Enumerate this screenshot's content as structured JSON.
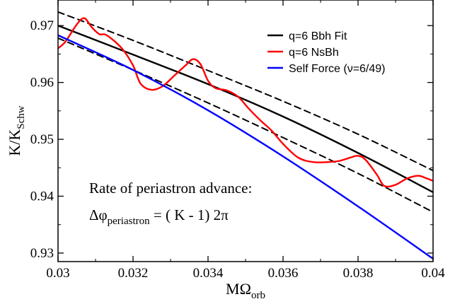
{
  "chart_data": {
    "type": "line",
    "xlim": [
      0.03,
      0.04
    ],
    "ylim": [
      0.9285,
      0.9745
    ],
    "x_ticks": [
      0.03,
      0.032,
      0.034,
      0.036,
      0.038,
      0.04
    ],
    "x_tick_labels": [
      "0.03",
      "0.032",
      "0.034",
      "0.036",
      "0.038",
      "0.04"
    ],
    "y_ticks": [
      0.93,
      0.94,
      0.95,
      0.96,
      0.97
    ],
    "y_tick_labels": [
      "0.93",
      "0.94",
      "0.95",
      "0.96",
      "0.97"
    ],
    "xlabel": {
      "main": "MΩ",
      "sub": "orb"
    },
    "ylabel": {
      "main": "K/K",
      "sub": "Schw"
    },
    "grid": false,
    "legend_position": "top-right",
    "annotation": {
      "line1": "Rate of periastron advance:",
      "line2_prefix": "Δφ",
      "line2_sub": "periastron",
      "line2_suffix": " = ( K - 1) 2π"
    },
    "series": [
      {
        "name": "q=6 Bbh Fit",
        "color": "#000000",
        "style": "solid",
        "x": [
          0.03,
          0.032,
          0.034,
          0.036,
          0.038,
          0.04
        ],
        "y": [
          0.97,
          0.9649,
          0.9597,
          0.954,
          0.9476,
          0.9407
        ]
      },
      {
        "name": "",
        "color": "#000000",
        "style": "dashed",
        "x": [
          0.03,
          0.032,
          0.034,
          0.036,
          0.038,
          0.04
        ],
        "y": [
          0.9724,
          0.9674,
          0.9621,
          0.9567,
          0.9509,
          0.9445
        ]
      },
      {
        "name": "",
        "color": "#000000",
        "style": "dashed",
        "x": [
          0.03,
          0.032,
          0.034,
          0.036,
          0.038,
          0.04
        ],
        "y": [
          0.9678,
          0.9622,
          0.9564,
          0.9503,
          0.944,
          0.9372
        ]
      },
      {
        "name": "q=6 NsBh",
        "color": "#ff0000",
        "style": "solid",
        "x": [
          0.03,
          0.0302,
          0.0305,
          0.0307,
          0.0309,
          0.0311,
          0.0313,
          0.0317,
          0.032,
          0.0322,
          0.0325,
          0.0328,
          0.0331,
          0.0334,
          0.0336,
          0.0338,
          0.034,
          0.0342,
          0.0345,
          0.0348,
          0.0351,
          0.0354,
          0.0357,
          0.036,
          0.0364,
          0.0368,
          0.0372,
          0.0375,
          0.0378,
          0.038,
          0.0382,
          0.0385,
          0.0387,
          0.039,
          0.0393,
          0.0396,
          0.0398,
          0.04
        ],
        "y": [
          0.966,
          0.9672,
          0.9702,
          0.9713,
          0.9697,
          0.9685,
          0.9683,
          0.966,
          0.963,
          0.9598,
          0.9587,
          0.9594,
          0.9612,
          0.963,
          0.9641,
          0.9632,
          0.9603,
          0.959,
          0.9586,
          0.9575,
          0.9553,
          0.9533,
          0.9515,
          0.9492,
          0.9468,
          0.946,
          0.946,
          0.9462,
          0.9468,
          0.9471,
          0.9464,
          0.9438,
          0.9418,
          0.942,
          0.9431,
          0.9436,
          0.9432,
          0.9427
        ]
      },
      {
        "name": "Self Force (ν=6/49)",
        "color": "#0000ff",
        "style": "solid",
        "x": [
          0.03,
          0.032,
          0.034,
          0.036,
          0.038,
          0.04
        ],
        "y": [
          0.9683,
          0.9622,
          0.9551,
          0.947,
          0.9382,
          0.929
        ]
      }
    ]
  }
}
